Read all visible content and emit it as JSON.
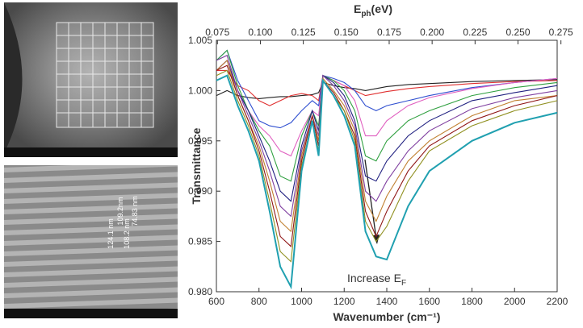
{
  "chart_data": {
    "type": "line",
    "x2label": {
      "main": "E",
      "sub": "ph",
      "rest": "(eV)"
    },
    "xlabel": "Wavenumber (cm⁻¹)",
    "ylabel": "Transmittance",
    "annotation": {
      "main": "Increase E",
      "sub": "F"
    },
    "sem_labels": [
      "124.1 nm",
      "109.2nm",
      "108.2 nm",
      "74.83 nm"
    ],
    "xlim": [
      600,
      2200
    ],
    "xticks": [
      600,
      800,
      1000,
      1200,
      1400,
      1600,
      1800,
      2000,
      2200
    ],
    "x2lim": [
      0.0744,
      0.2728
    ],
    "x2ticks": [
      0.075,
      {
        "value": 0.1,
        "label": "0.100"
      },
      0.125,
      {
        "value": 0.15,
        "label": "0.150"
      },
      0.175,
      {
        "value": 0.2,
        "label": "0.200"
      },
      0.225,
      {
        "value": 0.25,
        "label": "0.250"
      },
      0.275
    ],
    "ylim": [
      0.98,
      1.005
    ],
    "yticks": [
      {
        "value": 0.98,
        "label": "0.980"
      },
      0.985,
      {
        "value": 0.99,
        "label": "0.990"
      },
      0.995,
      {
        "value": 1.0,
        "label": "1.000"
      },
      1.005
    ],
    "x": [
      600,
      650,
      700,
      750,
      800,
      850,
      900,
      950,
      1000,
      1050,
      1080,
      1100,
      1150,
      1200,
      1250,
      1300,
      1350,
      1400,
      1500,
      1600,
      1800,
      2000,
      2200
    ],
    "series": [
      {
        "color": "#222222",
        "values": [
          0.9995,
          1.0,
          0.9995,
          0.9993,
          0.9992,
          0.9993,
          0.9994,
          0.9994,
          0.9995,
          0.9996,
          0.9998,
          1.0008,
          1.0005,
          1.0003,
          1.0002,
          1.0,
          1.0002,
          1.0004,
          1.0006,
          1.0007,
          1.0009,
          1.001,
          1.0011
        ]
      },
      {
        "color": "#e03030",
        "values": [
          1.002,
          1.002,
          1.0005,
          1.0,
          0.999,
          0.9985,
          0.999,
          0.9995,
          0.9997,
          0.9995,
          0.999,
          1.0015,
          1.001,
          1.0005,
          1.0,
          0.9995,
          0.9997,
          0.9999,
          1.0002,
          1.0004,
          1.0007,
          1.0009,
          1.001
        ]
      },
      {
        "color": "#3050d0",
        "values": [
          1.003,
          1.004,
          1.001,
          0.999,
          0.997,
          0.9965,
          0.9963,
          0.9968,
          0.998,
          0.999,
          0.9985,
          1.0015,
          1.0012,
          1.0008,
          1.0,
          0.9985,
          0.998,
          0.9985,
          0.999,
          0.9995,
          1.0003,
          1.0008,
          1.0012
        ]
      },
      {
        "color": "#e060c0",
        "values": [
          1.002,
          1.003,
          1.0,
          0.998,
          0.9965,
          0.9955,
          0.994,
          0.9935,
          0.996,
          0.998,
          0.9975,
          1.0015,
          1.001,
          1.0005,
          0.999,
          0.9955,
          0.9955,
          0.997,
          0.9985,
          0.9993,
          1.0002,
          1.0008,
          1.0012
        ]
      },
      {
        "color": "#30a040",
        "values": [
          1.003,
          1.004,
          1.0005,
          0.998,
          0.996,
          0.9945,
          0.9915,
          0.991,
          0.9955,
          0.998,
          0.9965,
          1.0015,
          1.001,
          1.0,
          0.998,
          0.9935,
          0.993,
          0.995,
          0.997,
          0.998,
          0.9995,
          1.0003,
          1.0008
        ]
      },
      {
        "color": "#202080",
        "values": [
          1.002,
          1.003,
          1.0,
          0.998,
          0.9955,
          0.993,
          0.99,
          0.989,
          0.9945,
          0.998,
          0.996,
          1.0015,
          1.0008,
          0.9995,
          0.997,
          0.9915,
          0.991,
          0.993,
          0.9955,
          0.997,
          0.999,
          0.9998,
          1.0005
        ]
      },
      {
        "color": "#8040a0",
        "values": [
          1.003,
          1.0035,
          1.0,
          0.9975,
          0.995,
          0.992,
          0.9885,
          0.9875,
          0.994,
          0.9975,
          0.9955,
          1.0015,
          1.0005,
          0.999,
          0.9965,
          0.99,
          0.989,
          0.991,
          0.994,
          0.996,
          0.9982,
          0.9993,
          1.0
        ]
      },
      {
        "color": "#c08030",
        "values": [
          1.002,
          1.003,
          0.9995,
          0.997,
          0.9945,
          0.991,
          0.987,
          0.986,
          0.9935,
          0.9975,
          0.995,
          1.0012,
          1.0,
          0.9985,
          0.996,
          0.989,
          0.987,
          0.9895,
          0.993,
          0.995,
          0.9975,
          0.999,
          0.9995
        ]
      },
      {
        "color": "#901818",
        "values": [
          1.002,
          1.0025,
          0.9995,
          0.997,
          0.994,
          0.99,
          0.9855,
          0.9845,
          0.993,
          0.9975,
          0.9945,
          1.001,
          0.9998,
          0.998,
          0.9955,
          0.988,
          0.9855,
          0.988,
          0.992,
          0.9945,
          0.997,
          0.9985,
          0.9995
        ]
      },
      {
        "color": "#909020",
        "values": [
          1.0015,
          1.002,
          0.999,
          0.9965,
          0.9935,
          0.989,
          0.984,
          0.983,
          0.9925,
          0.997,
          0.994,
          1.001,
          0.9995,
          0.998,
          0.995,
          0.987,
          0.985,
          0.9865,
          0.991,
          0.994,
          0.9965,
          0.998,
          0.999
        ]
      },
      {
        "color": "#20a0b0",
        "values": [
          1.001,
          1.0015,
          0.9985,
          0.996,
          0.993,
          0.988,
          0.9825,
          0.9805,
          0.992,
          0.997,
          0.9935,
          1.001,
          0.9995,
          0.9975,
          0.9945,
          0.986,
          0.9835,
          0.9832,
          0.9885,
          0.992,
          0.995,
          0.9968,
          0.9978
        ]
      }
    ]
  }
}
